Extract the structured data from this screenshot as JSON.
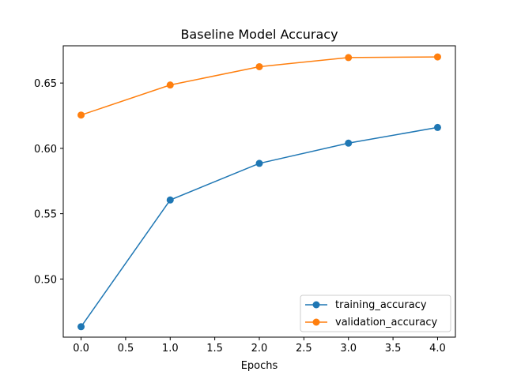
{
  "chart_data": {
    "type": "line",
    "title": "Baseline Model Accuracy",
    "xlabel": "Epochs",
    "ylabel": "",
    "x": [
      0,
      1,
      2,
      3,
      4
    ],
    "xlim": [
      -0.2,
      4.2
    ],
    "ylim": [
      0.4555,
      0.6785
    ],
    "xticks": [
      0.0,
      0.5,
      1.0,
      1.5,
      2.0,
      2.5,
      3.0,
      3.5,
      4.0
    ],
    "xtick_labels": [
      "0.0",
      "0.5",
      "1.0",
      "1.5",
      "2.0",
      "2.5",
      "3.0",
      "3.5",
      "4.0"
    ],
    "yticks": [
      0.5,
      0.55,
      0.6,
      0.65
    ],
    "ytick_labels": [
      "0.50",
      "0.55",
      "0.60",
      "0.65"
    ],
    "grid": false,
    "legend_position": "lower-right",
    "series": [
      {
        "name": "training_accuracy",
        "color": "#1f77b4",
        "values": [
          0.4635,
          0.5605,
          0.5885,
          0.604,
          0.616
        ]
      },
      {
        "name": "validation_accuracy",
        "color": "#ff7f0e",
        "values": [
          0.6255,
          0.6485,
          0.6625,
          0.6695,
          0.67
        ]
      }
    ]
  }
}
